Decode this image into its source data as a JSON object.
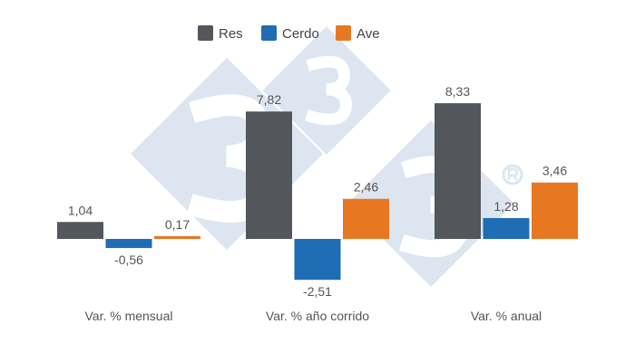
{
  "chart_data": {
    "type": "bar",
    "categories": [
      "Var. % mensual",
      "Var. % año corrido",
      "Var. % anual"
    ],
    "series": [
      {
        "name": "Res",
        "color": "#53565b",
        "values": [
          1.04,
          7.82,
          8.33
        ],
        "labels": [
          "1,04",
          "7,82",
          "8,33"
        ]
      },
      {
        "name": "Cerdo",
        "color": "#1f6db5",
        "values": [
          -0.56,
          -2.51,
          1.28
        ],
        "labels": [
          "-0,56",
          "-2,51",
          "1,28"
        ]
      },
      {
        "name": "Ave",
        "color": "#e87722",
        "values": [
          0.17,
          2.46,
          3.46
        ],
        "labels": [
          "0,17",
          "2,46",
          "3,46"
        ]
      }
    ],
    "legend_position": "top",
    "grid": false,
    "title": "",
    "xlabel": "",
    "ylabel": ""
  },
  "watermark": {
    "text": "333",
    "color": "#dce5f0"
  }
}
